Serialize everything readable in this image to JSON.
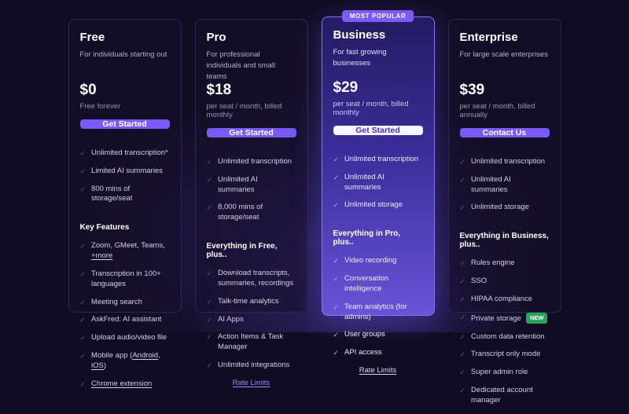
{
  "page": {
    "background": "#100c22",
    "accent": "#7a5af6",
    "popular_badge_label": "MOST POPULAR",
    "new_badge_label": "NEW",
    "check_icon": "✓"
  },
  "plans": [
    {
      "name": "Free",
      "description": "For individuals starting out",
      "price": "$0",
      "price_note": "Free forever",
      "cta": "Get Started",
      "cta_style": "purple",
      "popular": false,
      "base_features": [
        "Unlimited transcription*",
        "Limited AI summaries",
        "800 mins of storage/seat"
      ],
      "section_header": "Key Features",
      "extra_features": [
        [
          {
            "t": "Zoom, GMeet, Teams, "
          },
          {
            "t": "+more",
            "u": true
          }
        ],
        "Transcription in 100+ languages",
        "Meeting search",
        "AskFred: AI assistant",
        "Upload audio/video file",
        [
          {
            "t": "Mobile app ("
          },
          {
            "t": "Android",
            "u": true
          },
          {
            "t": ", "
          },
          {
            "t": "iOS",
            "u": true
          },
          {
            "t": ")"
          }
        ],
        [
          {
            "t": "Chrome extension",
            "u": true
          }
        ]
      ],
      "footer_link": ""
    },
    {
      "name": "Pro",
      "description": "For professional individuals and small teams",
      "price": "$18",
      "price_note": "per seat / month, billed monthly",
      "cta": "Get Started",
      "cta_style": "purple",
      "popular": false,
      "base_features": [
        "Unlimited transcription",
        "Unlimited AI summaries",
        "8,000 mins of storage/seat"
      ],
      "section_header": "Everything in Free, plus..",
      "extra_features": [
        "Download transcripts, summaries, recordings",
        "Talk-time analytics",
        "AI Apps",
        "Action Items & Task Manager",
        "Unlimited integrations"
      ],
      "footer_link": "Rate Limits"
    },
    {
      "name": "Business",
      "description": "For fast growing businesses",
      "price": "$29",
      "price_note": "per seat / month, billed monthly",
      "cta": "Get Started",
      "cta_style": "white",
      "popular": true,
      "base_features": [
        "Unlimited transcription",
        "Unlimited AI summaries",
        "Unlimited storage"
      ],
      "section_header": "Everything in Pro, plus..",
      "extra_features": [
        "Video recording",
        "Conversation intelligence",
        "Team analytics (for admins)",
        "User groups",
        "API access"
      ],
      "footer_link": "Rate Limits"
    },
    {
      "name": "Enterprise",
      "description": "For large scale enterprises",
      "price": "$39",
      "price_note": "per seat / month, billed annually",
      "cta": "Contact Us",
      "cta_style": "purple",
      "popular": false,
      "base_features": [
        "Unlimited transcription",
        "Unlimited AI summaries",
        "Unlimited storage"
      ],
      "section_header": "Everything in Business, plus..",
      "extra_features": [
        "Rules engine",
        "SSO",
        "HIPAA compliance",
        [
          {
            "t": "Private storage"
          },
          {
            "badge": "NEW"
          }
        ],
        "Custom data retention",
        "Transcript only mode",
        "Super admin role",
        "Dedicated account manager"
      ],
      "footer_link": ""
    }
  ]
}
